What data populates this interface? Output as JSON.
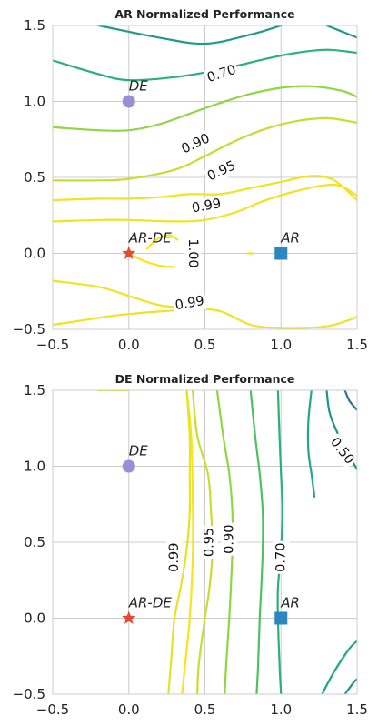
{
  "chart_data": [
    {
      "type": "contour",
      "title": "AR Normalized Performance",
      "xlim": [
        -0.5,
        1.5
      ],
      "ylim": [
        -0.5,
        1.5
      ],
      "xticks": [
        -0.5,
        0.0,
        0.5,
        1.0,
        1.5
      ],
      "yticks": [
        -0.5,
        0.0,
        0.5,
        1.0,
        1.5
      ],
      "xtick_labels": [
        "−0.5",
        "0.0",
        "0.5",
        "1.0",
        "1.5"
      ],
      "ytick_labels": [
        "−0.5",
        "0.0",
        "0.5",
        "1.0",
        "1.5"
      ],
      "grid": true,
      "contours": [
        {
          "level": 0.5,
          "color": "#24998a",
          "lines": [
            [
              [
                -0.2,
                1.5
              ],
              [
                0.2,
                1.42
              ],
              [
                0.5,
                1.38
              ],
              [
                0.8,
                1.44
              ],
              [
                1.0,
                1.5
              ]
            ],
            [
              [
                1.3,
                1.5
              ],
              [
                1.5,
                1.42
              ]
            ]
          ]
        },
        {
          "level": 0.7,
          "color": "#2aaf7d",
          "lines": [
            [
              [
                -0.5,
                1.27
              ],
              [
                -0.2,
                1.18
              ],
              [
                0.0,
                1.14
              ],
              [
                0.3,
                1.16
              ],
              [
                0.6,
                1.21
              ],
              [
                0.9,
                1.28
              ],
              [
                1.1,
                1.32
              ],
              [
                1.3,
                1.34
              ],
              [
                1.5,
                1.32
              ]
            ]
          ]
        },
        {
          "level": 0.9,
          "color": "#90d643",
          "lines": [
            [
              [
                -0.5,
                0.83
              ],
              [
                -0.2,
                0.81
              ],
              [
                0.0,
                0.81
              ],
              [
                0.2,
                0.85
              ],
              [
                0.4,
                0.92
              ],
              [
                0.6,
                0.99
              ],
              [
                0.8,
                1.05
              ],
              [
                1.0,
                1.09
              ],
              [
                1.2,
                1.1
              ],
              [
                1.4,
                1.07
              ],
              [
                1.5,
                1.03
              ]
            ]
          ]
        },
        {
          "level": 0.95,
          "color": "#c9dc2f",
          "lines": [
            [
              [
                -0.5,
                0.48
              ],
              [
                -0.2,
                0.48
              ],
              [
                0.0,
                0.49
              ],
              [
                0.3,
                0.55
              ],
              [
                0.5,
                0.64
              ],
              [
                0.7,
                0.74
              ],
              [
                0.9,
                0.82
              ],
              [
                1.1,
                0.87
              ],
              [
                1.3,
                0.89
              ],
              [
                1.5,
                0.86
              ]
            ]
          ]
        },
        {
          "level": 0.99,
          "color": "#f0e321",
          "lines": [
            [
              [
                -0.5,
                0.35
              ],
              [
                -0.2,
                0.36
              ],
              [
                0.0,
                0.36
              ],
              [
                0.2,
                0.37
              ],
              [
                0.4,
                0.39
              ],
              [
                0.6,
                0.39
              ],
              [
                0.8,
                0.43
              ],
              [
                1.0,
                0.47
              ],
              [
                1.2,
                0.51
              ],
              [
                1.35,
                0.48
              ],
              [
                1.5,
                0.35
              ]
            ],
            [
              [
                -0.5,
                0.21
              ],
              [
                -0.2,
                0.22
              ],
              [
                0.0,
                0.22
              ],
              [
                0.3,
                0.21
              ],
              [
                0.5,
                0.22
              ],
              [
                0.7,
                0.27
              ],
              [
                0.9,
                0.35
              ],
              [
                1.1,
                0.41
              ],
              [
                1.3,
                0.45
              ],
              [
                1.4,
                0.44
              ],
              [
                1.5,
                0.38
              ]
            ],
            [
              [
                -0.5,
                -0.47
              ],
              [
                -0.3,
                -0.44
              ],
              [
                -0.1,
                -0.41
              ],
              [
                0.1,
                -0.39
              ],
              [
                0.35,
                -0.37
              ],
              [
                0.5,
                -0.34
              ]
            ],
            [
              [
                -0.5,
                -0.18
              ],
              [
                -0.2,
                -0.22
              ],
              [
                0.0,
                -0.28
              ],
              [
                0.2,
                -0.34
              ],
              [
                0.4,
                -0.36
              ],
              [
                0.6,
                -0.38
              ],
              [
                0.8,
                -0.47
              ],
              [
                1.0,
                -0.49
              ],
              [
                1.3,
                -0.48
              ],
              [
                1.5,
                -0.42
              ]
            ]
          ]
        },
        {
          "level": 1.0,
          "color": "#f7e41d",
          "lines": [
            [
              [
                0.0,
                0.0
              ],
              [
                0.1,
                -0.05
              ],
              [
                0.2,
                -0.08
              ],
              [
                0.3,
                -0.09
              ]
            ],
            [
              [
                0.12,
                0.03
              ],
              [
                0.18,
                0.09
              ],
              [
                0.26,
                0.12
              ],
              [
                0.32,
                0.09
              ]
            ],
            [
              [
                0.78,
                0.0
              ],
              [
                0.82,
                0.0
              ]
            ]
          ]
        }
      ],
      "contour_labels": [
        {
          "text": "0.70",
          "x": 0.61,
          "y": 1.18,
          "angle": -18
        },
        {
          "text": "0.90",
          "x": 0.44,
          "y": 0.72,
          "angle": -25
        },
        {
          "text": "0.95",
          "x": 0.61,
          "y": 0.54,
          "angle": -25
        },
        {
          "text": "0.99",
          "x": 0.51,
          "y": 0.31,
          "angle": -10
        },
        {
          "text": "1.00",
          "x": 0.42,
          "y": 0.0,
          "angle": 90
        },
        {
          "text": "0.99",
          "x": 0.4,
          "y": -0.33,
          "angle": -10
        }
      ],
      "points": [
        {
          "label": "DE",
          "x": 0.0,
          "y": 1.0,
          "marker": "circle",
          "color": "#9a8ed8"
        },
        {
          "label": "AR-DE",
          "x": 0.0,
          "y": 0.0,
          "marker": "star",
          "color": "#e24a33"
        },
        {
          "label": "AR",
          "x": 1.0,
          "y": 0.0,
          "marker": "square",
          "color": "#2e86c1"
        }
      ]
    },
    {
      "type": "contour",
      "title": "DE Normalized Performance",
      "xlim": [
        -0.5,
        1.5
      ],
      "ylim": [
        -0.5,
        1.5
      ],
      "xticks": [
        -0.5,
        0.0,
        0.5,
        1.0,
        1.5
      ],
      "yticks": [
        -0.5,
        0.0,
        0.5,
        1.0,
        1.5
      ],
      "xtick_labels": [
        "−0.5",
        "0.0",
        "0.5",
        "1.0",
        "1.5"
      ],
      "ytick_labels": [
        "−0.5",
        "0.0",
        "0.5",
        "1.0",
        "1.5"
      ],
      "grid": true,
      "contours": [
        {
          "level": 1.0,
          "color": "#f7e41d",
          "lines": [
            [
              [
                0.38,
                1.5
              ],
              [
                0.41,
                1.2
              ],
              [
                0.42,
                0.8
              ],
              [
                0.42,
                0.4
              ],
              [
                0.4,
                0.0
              ],
              [
                0.36,
                -0.4
              ],
              [
                0.35,
                -0.5
              ]
            ]
          ]
        },
        {
          "level": 0.99,
          "color": "#e6e225",
          "lines": [
            [
              [
                0.38,
                1.5
              ],
              [
                0.4,
                1.2
              ],
              [
                0.4,
                0.95
              ],
              [
                0.4,
                0.7
              ],
              [
                0.38,
                0.45
              ],
              [
                0.34,
                0.2
              ],
              [
                0.3,
                0.0
              ],
              [
                0.28,
                -0.25
              ],
              [
                0.26,
                -0.5
              ]
            ],
            [
              [
                -0.2,
                1.5
              ],
              [
                0.0,
                1.5
              ]
            ]
          ]
        },
        {
          "level": 0.95,
          "color": "#c9dc2f",
          "lines": [
            [
              [
                0.42,
                1.5
              ],
              [
                0.45,
                1.2
              ],
              [
                0.52,
                0.95
              ],
              [
                0.54,
                0.7
              ],
              [
                0.55,
                0.45
              ],
              [
                0.53,
                0.2
              ],
              [
                0.5,
                0.0
              ],
              [
                0.46,
                -0.3
              ],
              [
                0.45,
                -0.5
              ]
            ]
          ]
        },
        {
          "level": 0.9,
          "color": "#90d643",
          "lines": [
            [
              [
                0.58,
                1.5
              ],
              [
                0.62,
                1.2
              ],
              [
                0.66,
                0.95
              ],
              [
                0.68,
                0.7
              ],
              [
                0.68,
                0.45
              ],
              [
                0.67,
                0.2
              ],
              [
                0.66,
                0.0
              ],
              [
                0.64,
                -0.3
              ],
              [
                0.63,
                -0.5
              ]
            ]
          ]
        },
        {
          "level": 0.8,
          "color": "#4cc15f",
          "lines": [
            [
              [
                0.8,
                1.5
              ],
              [
                0.83,
                1.2
              ],
              [
                0.86,
                0.95
              ],
              [
                0.88,
                0.7
              ],
              [
                0.88,
                0.45
              ],
              [
                0.87,
                0.2
              ],
              [
                0.86,
                0.0
              ],
              [
                0.85,
                -0.3
              ],
              [
                0.84,
                -0.5
              ]
            ]
          ]
        },
        {
          "level": 0.7,
          "color": "#2aaf7d",
          "lines": [
            [
              [
                0.98,
                1.5
              ],
              [
                0.99,
                1.2
              ],
              [
                1.0,
                0.95
              ],
              [
                1.01,
                0.7
              ],
              [
                1.0,
                0.45
              ],
              [
                0.98,
                0.2
              ],
              [
                0.98,
                0.0
              ],
              [
                0.99,
                -0.3
              ],
              [
                1.0,
                -0.5
              ]
            ]
          ]
        },
        {
          "level": 0.6,
          "color": "#22a884",
          "lines": [
            [
              [
                1.2,
                1.5
              ],
              [
                1.18,
                1.3
              ],
              [
                1.18,
                1.1
              ],
              [
                1.2,
                0.95
              ],
              [
                1.22,
                0.8
              ]
            ],
            [
              [
                1.27,
                -0.5
              ],
              [
                1.35,
                -0.35
              ],
              [
                1.45,
                -0.2
              ],
              [
                1.5,
                -0.15
              ]
            ]
          ]
        },
        {
          "level": 0.5,
          "color": "#21918c",
          "lines": [
            [
              [
                1.3,
                1.5
              ],
              [
                1.32,
                1.35
              ],
              [
                1.38,
                1.2
              ],
              [
                1.46,
                1.05
              ],
              [
                1.5,
                0.98
              ]
            ],
            [
              [
                1.42,
                -0.5
              ],
              [
                1.48,
                -0.42
              ],
              [
                1.5,
                -0.4
              ]
            ]
          ]
        },
        {
          "level": 0.4,
          "color": "#2c728e",
          "lines": [
            [
              [
                1.42,
                1.5
              ],
              [
                1.45,
                1.43
              ],
              [
                1.5,
                1.37
              ]
            ]
          ]
        }
      ],
      "contour_labels": [
        {
          "text": "0.99",
          "x": 0.3,
          "y": 0.4,
          "angle": -90
        },
        {
          "text": "0.95",
          "x": 0.53,
          "y": 0.5,
          "angle": -90
        },
        {
          "text": "0.90",
          "x": 0.66,
          "y": 0.52,
          "angle": -90
        },
        {
          "text": "0.70",
          "x": 1.0,
          "y": 0.4,
          "angle": -90
        },
        {
          "text": "0.50",
          "x": 1.4,
          "y": 1.1,
          "angle": 52
        }
      ],
      "points": [
        {
          "label": "DE",
          "x": 0.0,
          "y": 1.0,
          "marker": "circle",
          "color": "#9a8ed8"
        },
        {
          "label": "AR-DE",
          "x": 0.0,
          "y": 0.0,
          "marker": "star",
          "color": "#e24a33"
        },
        {
          "label": "AR",
          "x": 1.0,
          "y": 0.0,
          "marker": "square",
          "color": "#2e86c1"
        }
      ]
    }
  ]
}
